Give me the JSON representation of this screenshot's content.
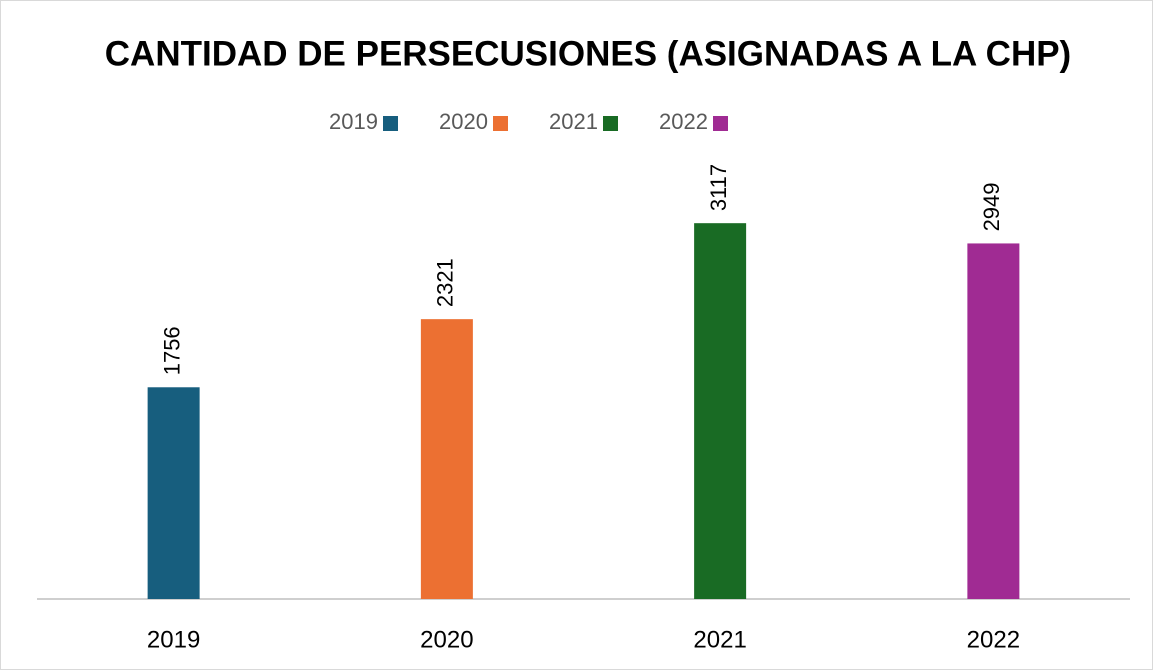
{
  "chart_data": {
    "type": "bar",
    "title": "CANTIDAD DE PERSECUSIONES (ASIGNADAS A LA CHP)",
    "categories": [
      "2019",
      "2020",
      "2021",
      "2022"
    ],
    "values": [
      1756,
      2321,
      3117,
      2949
    ],
    "colors": [
      "#175e7e",
      "#ec7032",
      "#196b24",
      "#a02b93"
    ],
    "ylim": [
      0,
      3500
    ],
    "legend": "top"
  }
}
